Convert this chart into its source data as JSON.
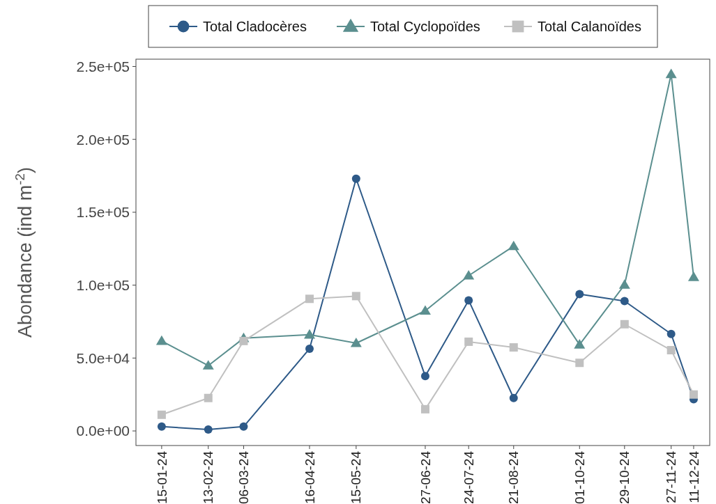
{
  "chart_data": {
    "type": "line",
    "ylabel": "Abondance (ind m$^{-2}$)",
    "legend": "top",
    "grid": false,
    "x": [
      "2024-01-15",
      "2024-02-13",
      "2024-03-06",
      "2024-04-16",
      "2024-05-15",
      "2024-06-27",
      "2024-07-24",
      "2024-08-21",
      "2024-10-01",
      "2024-10-29",
      "2024-11-27",
      "2024-12-11"
    ],
    "xlim": [
      "2023-12-30",
      "2024-12-21"
    ],
    "xticks": [
      {
        "value": "2024-01-15",
        "label": "15-01-24"
      },
      {
        "value": "2024-02-13",
        "label": "13-02-24"
      },
      {
        "value": "2024-03-06",
        "label": "06-03-24"
      },
      {
        "value": "2024-04-16",
        "label": "16-04-24"
      },
      {
        "value": "2024-05-15",
        "label": "15-05-24"
      },
      {
        "value": "2024-06-27",
        "label": "27-06-24"
      },
      {
        "value": "2024-07-24",
        "label": "24-07-24"
      },
      {
        "value": "2024-08-21",
        "label": "21-08-24"
      },
      {
        "value": "2024-10-01",
        "label": "01-10-24"
      },
      {
        "value": "2024-10-29",
        "label": "29-10-24"
      },
      {
        "value": "2024-11-27",
        "label": "27-11-24"
      },
      {
        "value": "2024-12-11",
        "label": "11-12-24"
      }
    ],
    "ylim": [
      -10000,
      255000
    ],
    "yticks": [
      {
        "value": 0,
        "label": "0.0e+00"
      },
      {
        "value": 50000,
        "label": "5.0e+04"
      },
      {
        "value": 100000,
        "label": "1.0e+05"
      },
      {
        "value": 150000,
        "label": "1.5e+05"
      },
      {
        "value": 200000,
        "label": "2.0e+05"
      },
      {
        "value": 250000,
        "label": "2.5e+05"
      }
    ],
    "series": [
      {
        "name": "Total Cladocères",
        "color": "#2e5a88",
        "marker": "circle",
        "values": [
          3000,
          1000,
          3000,
          56400,
          173000,
          37600,
          89600,
          22600,
          93900,
          89100,
          66500,
          21700
        ]
      },
      {
        "name": "Total Cyclopoïdes",
        "color": "#5b8f8f",
        "marker": "triangle",
        "values": [
          61700,
          44800,
          63600,
          66000,
          60200,
          82400,
          106500,
          126700,
          59200,
          100200,
          244700,
          105500
        ]
      },
      {
        "name": "Total Calanoïdes",
        "color": "#c0c0c0",
        "marker": "square",
        "values": [
          11100,
          22600,
          61700,
          90600,
          92500,
          14900,
          61200,
          57300,
          46700,
          73200,
          55400,
          25000
        ]
      }
    ]
  }
}
